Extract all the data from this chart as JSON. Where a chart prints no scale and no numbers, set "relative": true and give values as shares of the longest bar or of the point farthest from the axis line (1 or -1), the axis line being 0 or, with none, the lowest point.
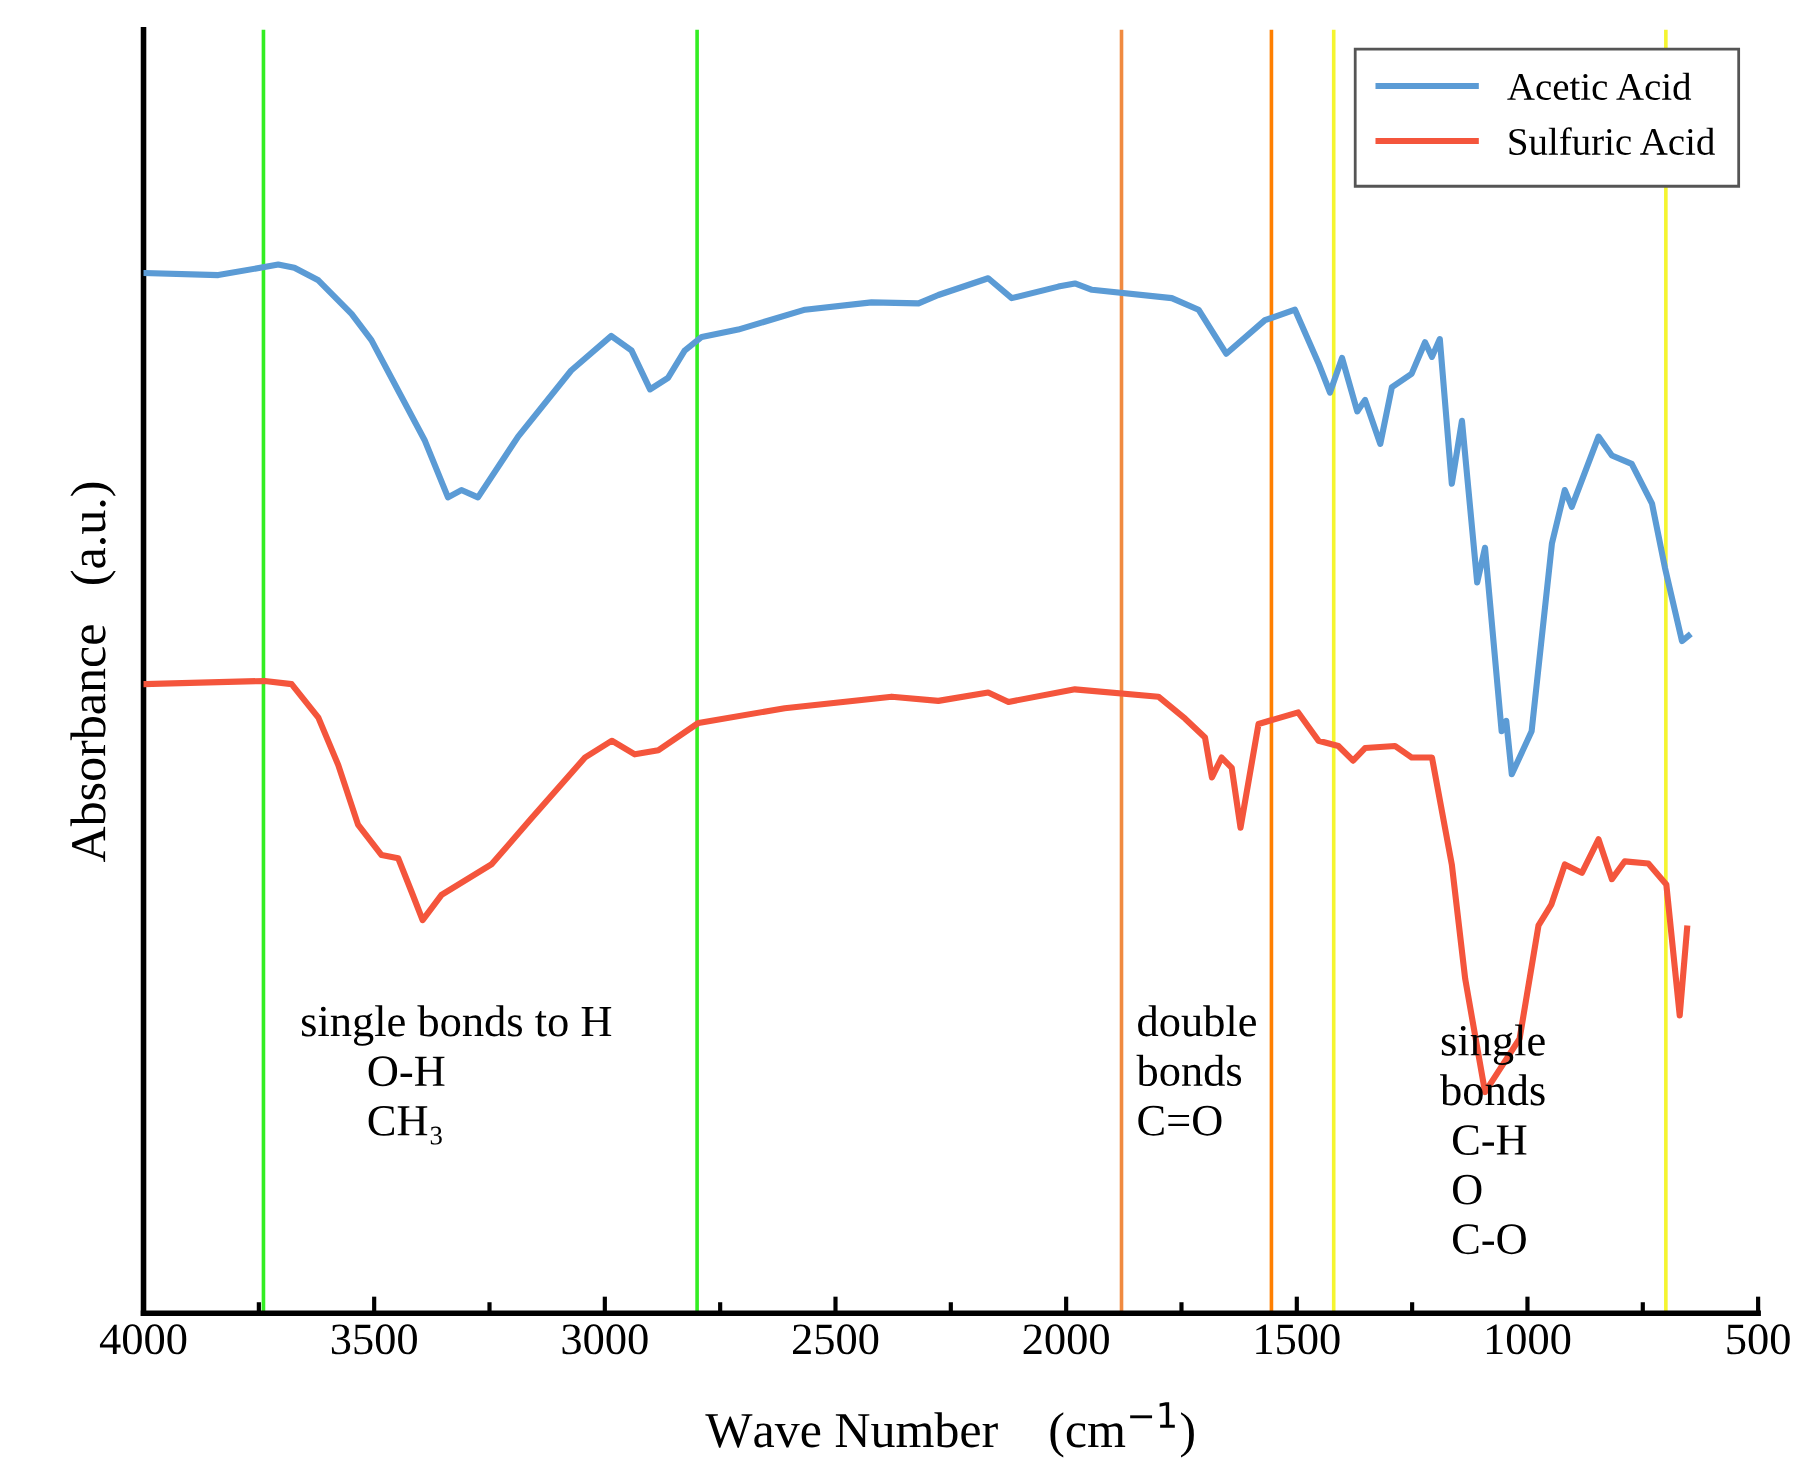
{
  "chart_data": {
    "type": "line",
    "relative": true,
    "xlabel": "Wave Number    (cm$^{−1}$)",
    "ylabel": "Absorbance   (a.u.)",
    "xlim": [
      4000,
      500
    ],
    "xticks": [
      4000,
      3500,
      3000,
      2500,
      2000,
      1500,
      1000,
      500
    ],
    "legend": "top right",
    "grid": false,
    "marker": "none",
    "line_style": "solid",
    "tick_labels": "x",
    "series": [
      {
        "name": "Acetic Acid",
        "color": "#5b9bd5",
        "x": [
          3997,
          3838,
          3708,
          3673,
          3621,
          3549,
          3506,
          3448,
          3390,
          3340,
          3311,
          3275,
          3188,
          3073,
          2986,
          2942,
          2902,
          2863,
          2827,
          2790,
          2711,
          2566,
          2422,
          2320,
          2277,
          2169,
          2118,
          2017,
          1981,
          1944,
          1771,
          1713,
          1653,
          1569,
          1504,
          1453,
          1428,
          1402,
          1369,
          1352,
          1319,
          1294,
          1251,
          1222,
          1207,
          1190,
          1164,
          1142,
          1109,
          1092,
          1056,
          1046,
          1034,
          991,
          947,
          919,
          904,
          846,
          817,
          774,
          730,
          702,
          665,
          651
        ],
        "values": [
          0.992,
          0.99,
          1,
          0.997,
          0.985,
          0.953,
          0.928,
          0.88,
          0.832,
          0.778,
          0.785,
          0.778,
          0.836,
          0.899,
          0.932,
          0.918,
          0.881,
          0.892,
          0.918,
          0.931,
          0.938,
          0.957,
          0.964,
          0.963,
          0.971,
          0.987,
          0.968,
          0.979,
          0.982,
          0.976,
          0.968,
          0.957,
          0.915,
          0.947,
          0.957,
          0.906,
          0.878,
          0.911,
          0.86,
          0.871,
          0.829,
          0.883,
          0.896,
          0.926,
          0.912,
          0.929,
          0.791,
          0.851,
          0.697,
          0.73,
          0.555,
          0.565,
          0.514,
          0.555,
          0.734,
          0.785,
          0.769,
          0.836,
          0.818,
          0.81,
          0.772,
          0.711,
          0.641,
          0.646
        ]
      },
      {
        "name": "Sulfuric Acid",
        "color": "#f4553c",
        "x": [
          3997,
          3737,
          3679,
          3621,
          3578,
          3535,
          3484,
          3448,
          3419,
          3395,
          3354,
          3246,
          3159,
          3043,
          2985,
          2935,
          2884,
          2797,
          2610,
          2378,
          2277,
          2169,
          2125,
          1981,
          1800,
          1742,
          1699,
          1684,
          1663,
          1641,
          1622,
          1583,
          1497,
          1453,
          1410,
          1378,
          1352,
          1287,
          1251,
          1207,
          1164,
          1135,
          1092,
          1017,
          976,
          948,
          919,
          882,
          846,
          817,
          789,
          738,
          699,
          670,
          654
        ],
        "values": [
          0.6,
          0.603,
          0.6,
          0.568,
          0.523,
          0.466,
          0.437,
          0.434,
          0.402,
          0.375,
          0.399,
          0.428,
          0.472,
          0.53,
          0.546,
          0.533,
          0.537,
          0.563,
          0.577,
          0.588,
          0.584,
          0.592,
          0.583,
          0.595,
          0.588,
          0.567,
          0.549,
          0.511,
          0.53,
          0.52,
          0.463,
          0.562,
          0.573,
          0.546,
          0.541,
          0.527,
          0.539,
          0.541,
          0.53,
          0.53,
          0.428,
          0.319,
          0.211,
          0.262,
          0.37,
          0.39,
          0.428,
          0.42,
          0.452,
          0.414,
          0.431,
          0.429,
          0.409,
          0.284,
          0.367
        ]
      }
    ],
    "ref_lines": [
      {
        "axis": "x",
        "value": 3740,
        "color": "#33ee22"
      },
      {
        "axis": "x",
        "value": 2800,
        "color": "#33ee22"
      },
      {
        "axis": "x",
        "value": 1880,
        "color": "#f08a40"
      },
      {
        "axis": "x",
        "value": 1555,
        "color": "#ff7f00"
      },
      {
        "axis": "x",
        "value": 1420,
        "color": "#f5f530"
      },
      {
        "axis": "x",
        "value": 700,
        "color": "#f5f530"
      }
    ],
    "annotations": [
      "single bonds to H\n      O-H\n      CH₃",
      "double\nbonds\nC=O",
      "single\nbonds\n C-H\n O\n C-O"
    ]
  }
}
